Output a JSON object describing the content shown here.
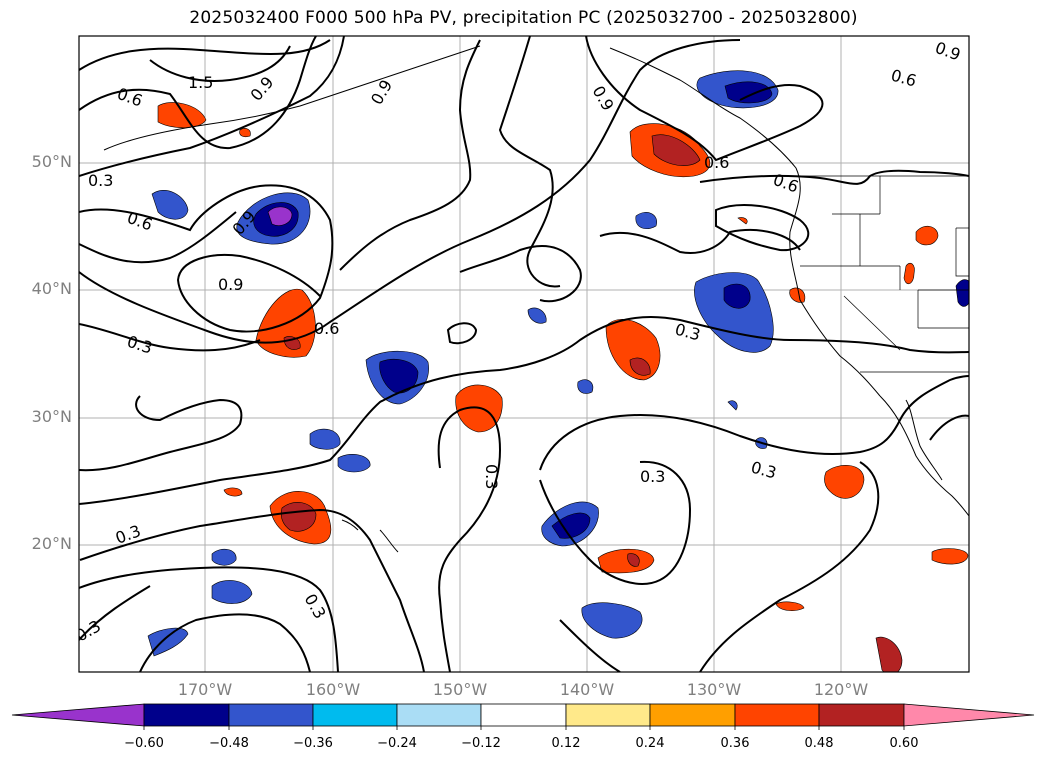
{
  "title": "2025032400 F000 500 hPa PV, precipitation PC (2025032700 - 2025032800)",
  "lat_labels": [
    "50°N",
    "40°N",
    "30°N",
    "20°N"
  ],
  "lon_labels": [
    "170°W",
    "160°W",
    "150°W",
    "140°W",
    "130°W",
    "120°W"
  ],
  "contour_labels": [
    "1.5",
    "0.9",
    "0.6",
    "0.9",
    "0.9",
    "0.6",
    "0.9",
    "0.6",
    "0.3",
    "0.6",
    "0.9",
    "0.9",
    "0.6",
    "0.3",
    "0.3",
    "0.3",
    "0.3",
    "0.3",
    "0.3",
    "0.3",
    "0.3",
    "0.6"
  ],
  "colorbar": {
    "ticks": [
      "−0.60",
      "−0.48",
      "−0.36",
      "−0.24",
      "−0.12",
      "0.12",
      "0.24",
      "0.36",
      "0.48",
      "0.60"
    ],
    "colors": [
      "#9933cc",
      "#00008b",
      "#3355cc",
      "#00bbee",
      "#aaddf5",
      "#ffffff",
      "#ffe98a",
      "#ff9f00",
      "#ff4400",
      "#b22222",
      "#ff88aa"
    ]
  }
}
